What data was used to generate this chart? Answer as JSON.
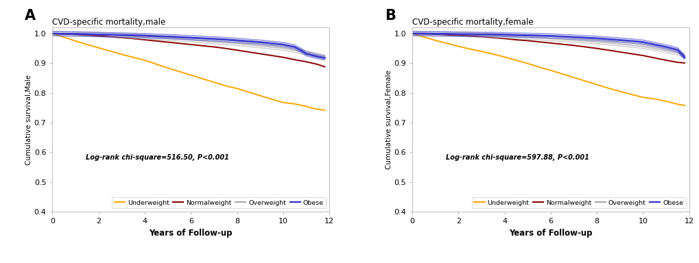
{
  "panel_A": {
    "title": "CVD-specific mortality,male",
    "ylabel": "Cumulative survival,Male",
    "xlabel": "Years of Follow-up",
    "annotation": "Log-rank chi-square=516.50, P<0.001",
    "ylim": [
      0.4,
      1.02
    ],
    "xlim": [
      0,
      12
    ],
    "xticks": [
      0,
      2,
      4,
      6,
      8,
      10,
      12
    ],
    "yticks": [
      0.4,
      0.5,
      0.6,
      0.7,
      0.8,
      0.9,
      1.0
    ],
    "curves": {
      "Underweight": {
        "color": "#FFA500",
        "x": [
          0,
          0.3,
          0.6,
          1,
          1.5,
          2,
          2.5,
          3,
          3.5,
          4,
          4.5,
          5,
          5.5,
          6,
          6.5,
          7,
          7.5,
          8,
          8.5,
          9,
          9.5,
          10,
          10.5,
          11,
          11.2,
          11.5,
          11.8
        ],
        "y": [
          1.0,
          0.993,
          0.985,
          0.975,
          0.963,
          0.952,
          0.941,
          0.93,
          0.92,
          0.91,
          0.897,
          0.884,
          0.872,
          0.86,
          0.848,
          0.836,
          0.824,
          0.815,
          0.803,
          0.791,
          0.779,
          0.768,
          0.763,
          0.755,
          0.75,
          0.745,
          0.742
        ]
      },
      "Normalweight": {
        "color": "#8B0000",
        "x": [
          0,
          0.5,
          1,
          1.5,
          2,
          2.5,
          3,
          3.5,
          4,
          4.5,
          5,
          5.5,
          6,
          6.5,
          7,
          7.5,
          8,
          8.5,
          9,
          9.5,
          10,
          10.5,
          11,
          11.5,
          11.8
        ],
        "y": [
          1.0,
          0.999,
          0.997,
          0.995,
          0.992,
          0.989,
          0.986,
          0.983,
          0.979,
          0.975,
          0.971,
          0.967,
          0.963,
          0.959,
          0.955,
          0.95,
          0.944,
          0.938,
          0.932,
          0.926,
          0.92,
          0.912,
          0.905,
          0.896,
          0.888
        ]
      },
      "Overweight": {
        "color": "#A9A9A9",
        "x": [
          0,
          0.5,
          1,
          1.5,
          2,
          2.5,
          3,
          3.5,
          4,
          4.5,
          5,
          5.5,
          6,
          6.5,
          7,
          7.5,
          8,
          8.5,
          9,
          9.5,
          10,
          10.5,
          11,
          11.5,
          11.8
        ],
        "y": [
          1.0,
          0.999,
          0.998,
          0.997,
          0.996,
          0.995,
          0.993,
          0.991,
          0.989,
          0.987,
          0.984,
          0.982,
          0.979,
          0.976,
          0.973,
          0.97,
          0.967,
          0.963,
          0.959,
          0.955,
          0.951,
          0.944,
          0.935,
          0.926,
          0.92
        ]
      },
      "Obese": {
        "color": "#2B2BCC",
        "x": [
          0,
          0.5,
          1,
          1.5,
          2,
          2.5,
          3,
          3.5,
          4,
          4.5,
          5,
          5.5,
          6,
          6.5,
          7,
          7.5,
          8,
          8.5,
          9,
          9.5,
          10,
          10.5,
          10.8,
          11,
          11.5,
          11.8
        ],
        "y": [
          1.0,
          0.999,
          0.999,
          0.998,
          0.997,
          0.996,
          0.995,
          0.994,
          0.993,
          0.991,
          0.99,
          0.988,
          0.986,
          0.984,
          0.982,
          0.98,
          0.977,
          0.974,
          0.971,
          0.967,
          0.963,
          0.955,
          0.942,
          0.932,
          0.922,
          0.918
        ]
      }
    }
  },
  "panel_B": {
    "title": "CVD-specific mortality,female",
    "ylabel": "Cumulative survival,Female",
    "xlabel": "Years of Follow-up",
    "annotation": "Log-rank chi-square=597.88, P<0.001",
    "ylim": [
      0.4,
      1.02
    ],
    "xlim": [
      0,
      12
    ],
    "xticks": [
      0,
      2,
      4,
      6,
      8,
      10,
      12
    ],
    "yticks": [
      0.4,
      0.5,
      0.6,
      0.7,
      0.8,
      0.9,
      1.0
    ],
    "curves": {
      "Underweight": {
        "color": "#FFA500",
        "x": [
          0,
          0.3,
          0.6,
          1,
          1.5,
          2,
          2.5,
          3,
          3.5,
          4,
          4.5,
          5,
          5.5,
          6,
          6.5,
          7,
          7.5,
          8,
          8.5,
          9,
          9.5,
          10,
          10.5,
          11,
          11.2,
          11.5,
          11.8
        ],
        "y": [
          1.0,
          0.993,
          0.986,
          0.977,
          0.967,
          0.957,
          0.948,
          0.94,
          0.931,
          0.921,
          0.91,
          0.899,
          0.887,
          0.876,
          0.864,
          0.852,
          0.84,
          0.828,
          0.816,
          0.805,
          0.795,
          0.785,
          0.78,
          0.772,
          0.768,
          0.762,
          0.758
        ]
      },
      "Normalweight": {
        "color": "#8B0000",
        "x": [
          0,
          0.5,
          1,
          1.5,
          2,
          2.5,
          3,
          3.5,
          4,
          4.5,
          5,
          5.5,
          6,
          6.5,
          7,
          7.5,
          8,
          8.5,
          9,
          9.5,
          10,
          10.5,
          11,
          11.5,
          11.8
        ],
        "y": [
          1.0,
          0.999,
          0.998,
          0.996,
          0.994,
          0.992,
          0.989,
          0.986,
          0.983,
          0.979,
          0.976,
          0.972,
          0.968,
          0.964,
          0.96,
          0.955,
          0.95,
          0.944,
          0.938,
          0.932,
          0.926,
          0.918,
          0.91,
          0.903,
          0.901
        ]
      },
      "Overweight": {
        "color": "#A9A9A9",
        "x": [
          0,
          0.5,
          1,
          1.5,
          2,
          2.5,
          3,
          3.5,
          4,
          4.5,
          5,
          5.5,
          6,
          6.5,
          7,
          7.5,
          8,
          8.5,
          9,
          9.5,
          10,
          10.5,
          11,
          11.5,
          11.8
        ],
        "y": [
          1.0,
          0.999,
          0.999,
          0.998,
          0.997,
          0.996,
          0.995,
          0.993,
          0.992,
          0.99,
          0.988,
          0.986,
          0.983,
          0.981,
          0.978,
          0.975,
          0.972,
          0.969,
          0.965,
          0.961,
          0.957,
          0.95,
          0.943,
          0.935,
          0.926
        ]
      },
      "Obese": {
        "color": "#2B2BCC",
        "x": [
          0,
          0.5,
          1,
          1.5,
          2,
          2.5,
          3,
          3.5,
          4,
          4.5,
          5,
          5.5,
          6,
          6.5,
          7,
          7.5,
          8,
          8.5,
          9,
          9.5,
          10,
          10.5,
          11,
          11.5,
          11.8
        ],
        "y": [
          1.0,
          1.0,
          0.999,
          0.999,
          0.998,
          0.998,
          0.997,
          0.997,
          0.996,
          0.995,
          0.994,
          0.993,
          0.992,
          0.99,
          0.988,
          0.986,
          0.984,
          0.981,
          0.978,
          0.975,
          0.971,
          0.963,
          0.955,
          0.945,
          0.92
        ]
      }
    }
  },
  "legend_labels": [
    "Underweight",
    "Normalweight",
    "Overweight",
    "Obese"
  ],
  "legend_colors": [
    "#FFA500",
    "#8B0000",
    "#A9A9A9",
    "#2B2BCC"
  ],
  "panel_labels": [
    "A",
    "B"
  ],
  "background_color": "#ffffff",
  "linewidth": 1.4
}
